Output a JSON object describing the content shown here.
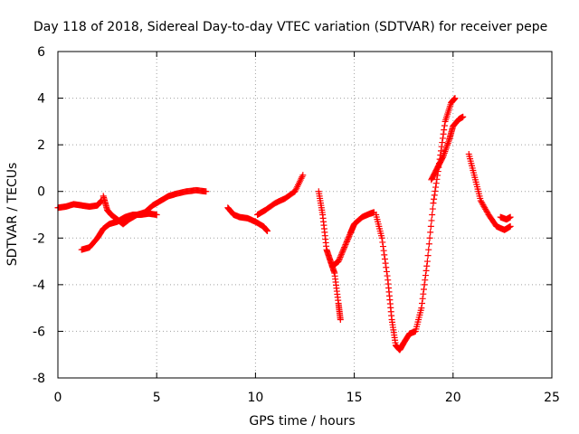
{
  "chart_data": {
    "type": "scatter",
    "title": "Day 118 of 2018, Sidereal Day-to-day VTEC variation (SDTVAR) for receiver pepe",
    "xlabel": "GPS time / hours",
    "ylabel": "SDTVAR / TECUs",
    "xlim": [
      0,
      25
    ],
    "ylim": [
      -8,
      6
    ],
    "xticks": [
      0,
      5,
      10,
      15,
      20,
      25
    ],
    "yticks": [
      -8,
      -6,
      -4,
      -2,
      0,
      2,
      4,
      6
    ],
    "grid": true,
    "marker": "plus",
    "color": "#ff0000",
    "segments": [
      {
        "x": [
          0.0,
          0.4,
          0.8,
          1.2,
          1.6,
          2.0,
          2.2
        ],
        "y": [
          -0.7,
          -0.65,
          -0.55,
          -0.6,
          -0.65,
          -0.6,
          -0.4
        ]
      },
      {
        "x": [
          2.3,
          2.5,
          2.7,
          3.0,
          3.3,
          3.6,
          4.0,
          4.4,
          4.8,
          5.2,
          5.6,
          6.0,
          6.5,
          7.0,
          7.5
        ],
        "y": [
          -0.2,
          -0.8,
          -1.0,
          -1.2,
          -1.4,
          -1.2,
          -1.0,
          -0.9,
          -0.6,
          -0.4,
          -0.2,
          -0.1,
          0.0,
          0.05,
          0.0
        ]
      },
      {
        "x": [
          1.2,
          1.6,
          2.0,
          2.3,
          2.6,
          3.0,
          3.4,
          3.8,
          4.2,
          4.6,
          5.0
        ],
        "y": [
          -2.5,
          -2.4,
          -2.0,
          -1.6,
          -1.4,
          -1.3,
          -1.1,
          -1.0,
          -1.0,
          -0.95,
          -1.0
        ]
      },
      {
        "x": [
          8.6,
          8.9,
          9.2,
          9.6,
          10.0,
          10.4,
          10.6
        ],
        "y": [
          -0.7,
          -1.0,
          -1.1,
          -1.15,
          -1.3,
          -1.5,
          -1.7
        ]
      },
      {
        "x": [
          10.1,
          10.5,
          11.0,
          11.5,
          12.0,
          12.4
        ],
        "y": [
          -1.0,
          -0.8,
          -0.5,
          -0.3,
          0.0,
          0.7
        ]
      },
      {
        "x": [
          13.2,
          13.4,
          13.6,
          13.8,
          14.0,
          14.2,
          14.3
        ],
        "y": [
          0.0,
          -1.0,
          -2.5,
          -3.0,
          -3.5,
          -4.8,
          -5.5
        ]
      },
      {
        "x": [
          13.9,
          14.2,
          14.5,
          14.8,
          15.0,
          15.4,
          15.8,
          16.0
        ],
        "y": [
          -3.2,
          -3.0,
          -2.4,
          -1.8,
          -1.4,
          -1.1,
          -0.95,
          -0.9
        ]
      },
      {
        "x": [
          16.1,
          16.4,
          16.7,
          16.9,
          17.1,
          17.3,
          17.5,
          17.8,
          18.1,
          18.4,
          18.7,
          19.0,
          19.3,
          19.6,
          19.9,
          20.1
        ],
        "y": [
          -1.0,
          -2.0,
          -3.8,
          -5.5,
          -6.6,
          -6.8,
          -6.5,
          -6.1,
          -6.0,
          -5.0,
          -3.0,
          -0.5,
          1.2,
          3.0,
          3.8,
          4.0
        ]
      },
      {
        "x": [
          18.9,
          19.2,
          19.5,
          19.8,
          20.0,
          20.3,
          20.5
        ],
        "y": [
          0.5,
          1.0,
          1.5,
          2.2,
          2.8,
          3.1,
          3.2
        ]
      },
      {
        "x": [
          20.8,
          21.1,
          21.4,
          21.8,
          22.2,
          22.6,
          22.9
        ],
        "y": [
          1.6,
          0.6,
          -0.4,
          -1.0,
          -1.5,
          -1.65,
          -1.5
        ]
      },
      {
        "x": [
          22.4,
          22.7,
          22.9
        ],
        "y": [
          -1.1,
          -1.2,
          -1.1
        ]
      }
    ]
  }
}
